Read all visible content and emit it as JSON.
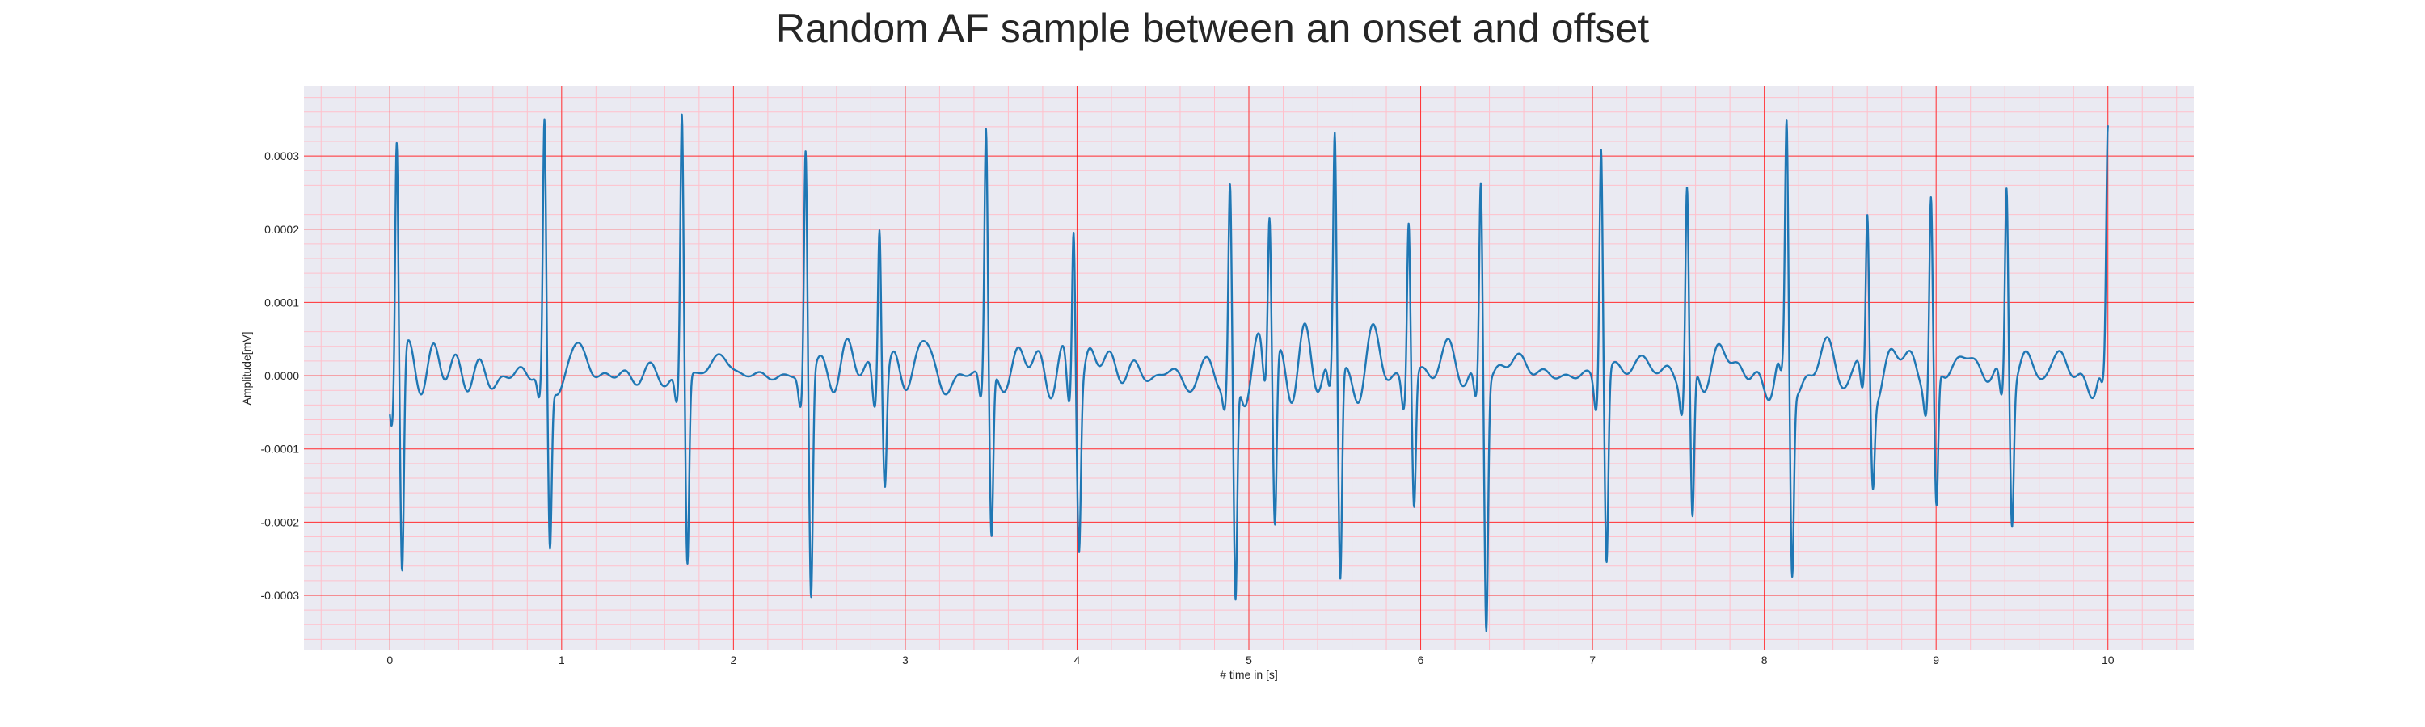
{
  "chart_data": {
    "type": "line",
    "title": "Random AF sample between an onset and offset",
    "xlabel": "# time in [s]",
    "ylabel": "Amplitude[mV]",
    "xlim": [
      -0.5,
      10.5
    ],
    "ylim": [
      -0.000375,
      0.000395
    ],
    "xticks": [
      0,
      1,
      2,
      3,
      4,
      5,
      6,
      7,
      8,
      9,
      10
    ],
    "xtick_labels": [
      "0",
      "1",
      "2",
      "3",
      "4",
      "5",
      "6",
      "7",
      "8",
      "9",
      "10"
    ],
    "yticks": [
      -0.0003,
      -0.0002,
      -0.0001,
      0,
      0.0001,
      0.0002,
      0.0003
    ],
    "ytick_labels": [
      "-0.0003",
      "-0.0002",
      "-0.0001",
      "0.0000",
      "0.0001",
      "0.0002",
      "0.0003"
    ],
    "grid": "on, ECG-style major (red) and minor (pink) gridlines",
    "colors": {
      "background": "#eaeaf2",
      "major_grid": "#ff0000",
      "minor_grid": "#ffc0cb",
      "line": "#1f77b4"
    },
    "series": [
      {
        "name": "",
        "color": "#1f77b4",
        "beats": [
          {
            "t": 0.04,
            "r": 0.000345,
            "s": -0.000285
          },
          {
            "t": 0.9,
            "r": 0.00034,
            "s": -0.00023
          },
          {
            "t": 1.7,
            "r": 0.000357,
            "s": -0.00026
          },
          {
            "t": 2.42,
            "r": 0.000315,
            "s": -0.000305
          },
          {
            "t": 2.85,
            "r": 0.00023,
            "s": -0.000138
          },
          {
            "t": 3.47,
            "r": 0.000328,
            "s": -0.00023
          },
          {
            "t": 3.98,
            "r": 0.000243,
            "s": -0.0002
          },
          {
            "t": 4.89,
            "r": 0.000247,
            "s": -0.000318
          },
          {
            "t": 5.12,
            "r": 0.00021,
            "s": -0.000228
          },
          {
            "t": 5.5,
            "r": 0.00032,
            "s": -0.000287
          },
          {
            "t": 5.93,
            "r": 0.000222,
            "s": -0.000178
          },
          {
            "t": 6.35,
            "r": 0.000268,
            "s": -0.000338
          },
          {
            "t": 7.05,
            "r": 0.000325,
            "s": -0.000255
          },
          {
            "t": 7.55,
            "r": 0.000258,
            "s": -0.000208
          },
          {
            "t": 8.13,
            "r": 0.000318,
            "s": -0.000265
          },
          {
            "t": 8.6,
            "r": 0.000222,
            "s": -0.000123
          },
          {
            "t": 8.97,
            "r": 0.000246,
            "s": -0.000187
          },
          {
            "t": 9.41,
            "r": 0.000265,
            "s": -0.000188
          },
          {
            "t": 10.0,
            "r": 0.00031,
            "s": -7e-05
          }
        ]
      }
    ]
  }
}
